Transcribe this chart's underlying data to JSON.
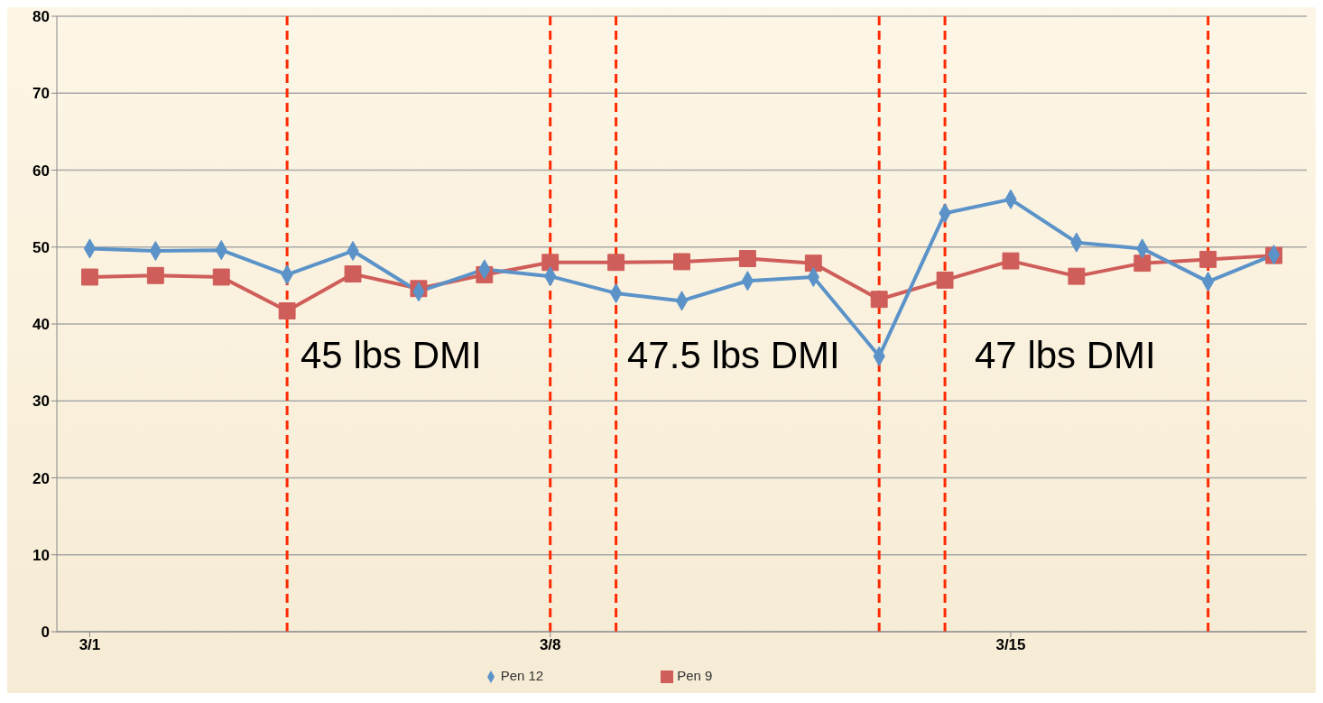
{
  "chart_data": {
    "type": "line",
    "x": [
      "--03-01",
      "--03-02",
      "--03-03",
      "--03-04",
      "--03-05",
      "--03-06",
      "--03-07",
      "--03-08",
      "--03-09",
      "--03-10",
      "--03-11",
      "--03-12",
      "--03-13",
      "--03-14",
      "--03-15",
      "--03-16",
      "--03-17",
      "--03-18",
      "--03-19"
    ],
    "series": [
      {
        "name": "Pen 12",
        "color": "#5b93c9",
        "marker": "diamond",
        "values": [
          49.8,
          49.5,
          49.6,
          46.4,
          49.5,
          44.2,
          47.1,
          46.2,
          44.0,
          43.0,
          45.6,
          46.1,
          35.8,
          54.4,
          56.2,
          50.6,
          49.8,
          45.5,
          49.0
        ]
      },
      {
        "name": "Pen 9",
        "color": "#cf5d59",
        "marker": "square",
        "values": [
          46.1,
          46.3,
          46.1,
          41.7,
          46.5,
          44.6,
          46.4,
          48.0,
          48.0,
          48.1,
          48.5,
          47.9,
          43.2,
          45.7,
          48.2,
          46.2,
          47.9,
          48.4,
          48.9
        ]
      }
    ],
    "ylim": [
      0,
      80
    ],
    "yticks": [
      0,
      10,
      20,
      30,
      40,
      50,
      60,
      70,
      80
    ],
    "xlim": [
      "--02-28T12:00",
      "--03-19T12:00"
    ],
    "xticks": [
      {
        "value": "--03-01",
        "label": "3/1"
      },
      {
        "value": "--03-08",
        "label": "3/8"
      },
      {
        "value": "--03-15",
        "label": "3/15"
      }
    ],
    "ref_lines": [
      {
        "axis": "x",
        "value": "--03-04",
        "color": "#ff2a00",
        "line_style": "dashed"
      },
      {
        "axis": "x",
        "value": "--03-08",
        "color": "#ff2a00",
        "line_style": "dashed"
      },
      {
        "axis": "x",
        "value": "--03-09",
        "color": "#ff2a00",
        "line_style": "dashed"
      },
      {
        "axis": "x",
        "value": "--03-13",
        "color": "#ff2a00",
        "line_style": "dashed"
      },
      {
        "axis": "x",
        "value": "--03-14",
        "color": "#ff2a00",
        "line_style": "dashed"
      },
      {
        "axis": "x",
        "value": "--03-18",
        "color": "#ff2a00",
        "line_style": "dashed"
      }
    ],
    "annotations": [
      "45 lbs DMI",
      "47.5 lbs DMI",
      "47 lbs DMI"
    ],
    "grid": "y",
    "legend": "bottom",
    "line_style": "solid"
  }
}
